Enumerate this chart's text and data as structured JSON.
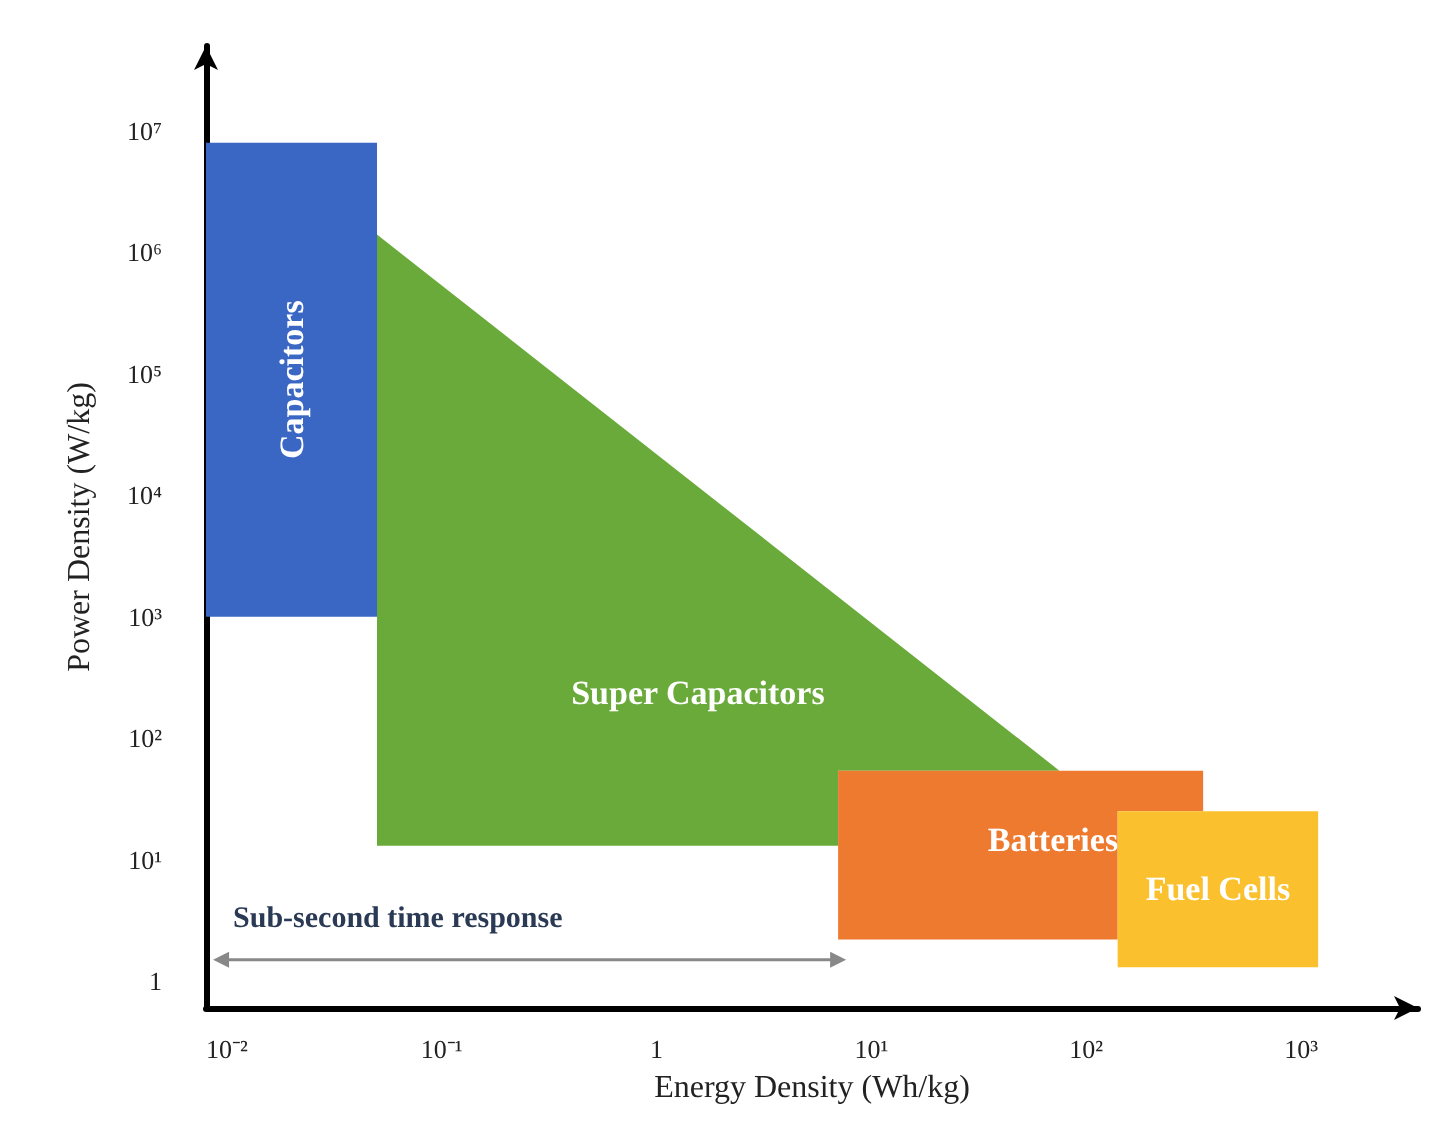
{
  "chart_data": {
    "type": "area",
    "xlabel": "Energy Density (Wh/kg)",
    "ylabel": "Power Density (W/kg)",
    "log": "xy",
    "xlim": [
      0.008,
      3500
    ],
    "ylim": [
      0.6,
      50000000
    ],
    "xticks": [
      {
        "value": 0.01,
        "label": "10⁻²"
      },
      {
        "value": 0.1,
        "label": "10⁻¹"
      },
      1,
      {
        "value": 10,
        "label": "10¹"
      },
      {
        "value": 100,
        "label": "10²"
      },
      {
        "value": 1000,
        "label": "10³"
      }
    ],
    "yticks": [
      1,
      {
        "value": 10,
        "label": "10¹"
      },
      {
        "value": 100,
        "label": "10²"
      },
      {
        "value": 1000,
        "label": "10³"
      },
      {
        "value": 10000,
        "label": "10⁴"
      },
      {
        "value": 100000,
        "label": "10⁵"
      },
      {
        "value": 1000000,
        "label": "10⁶"
      },
      {
        "value": 10000000,
        "label": "10⁷"
      }
    ],
    "series": [
      {
        "name": "Capacitors",
        "color": "#3a66c4",
        "x": [
          0.008,
          0.05,
          0.05,
          0.008
        ],
        "values": [
          8000000,
          8000000,
          1000,
          1000
        ]
      },
      {
        "name": "Super Capacitors",
        "color": "#6aaa3a",
        "x": [
          0.05,
          75,
          7,
          7,
          0.05
        ],
        "values": [
          1400000,
          54,
          54,
          13,
          13
        ]
      },
      {
        "name": "Batteries",
        "color": "#ee7a30",
        "x": [
          7,
          350,
          350,
          140,
          140,
          7
        ],
        "values": [
          54,
          54,
          25,
          25,
          2.2,
          2.2
        ]
      },
      {
        "name": "Fuel Cells",
        "color": "#fbc02d",
        "x": [
          140,
          1200,
          1200,
          140
        ],
        "values": [
          25,
          25,
          1.3,
          1.3
        ]
      },
      {
        "type": "line",
        "marker": "triangle",
        "color": "#888888",
        "x": [
          0.0094,
          7
        ],
        "values": [
          1.5,
          1.5
        ]
      }
    ],
    "annotations": [
      "Sub-second time response"
    ],
    "grid": false,
    "legend": false
  }
}
